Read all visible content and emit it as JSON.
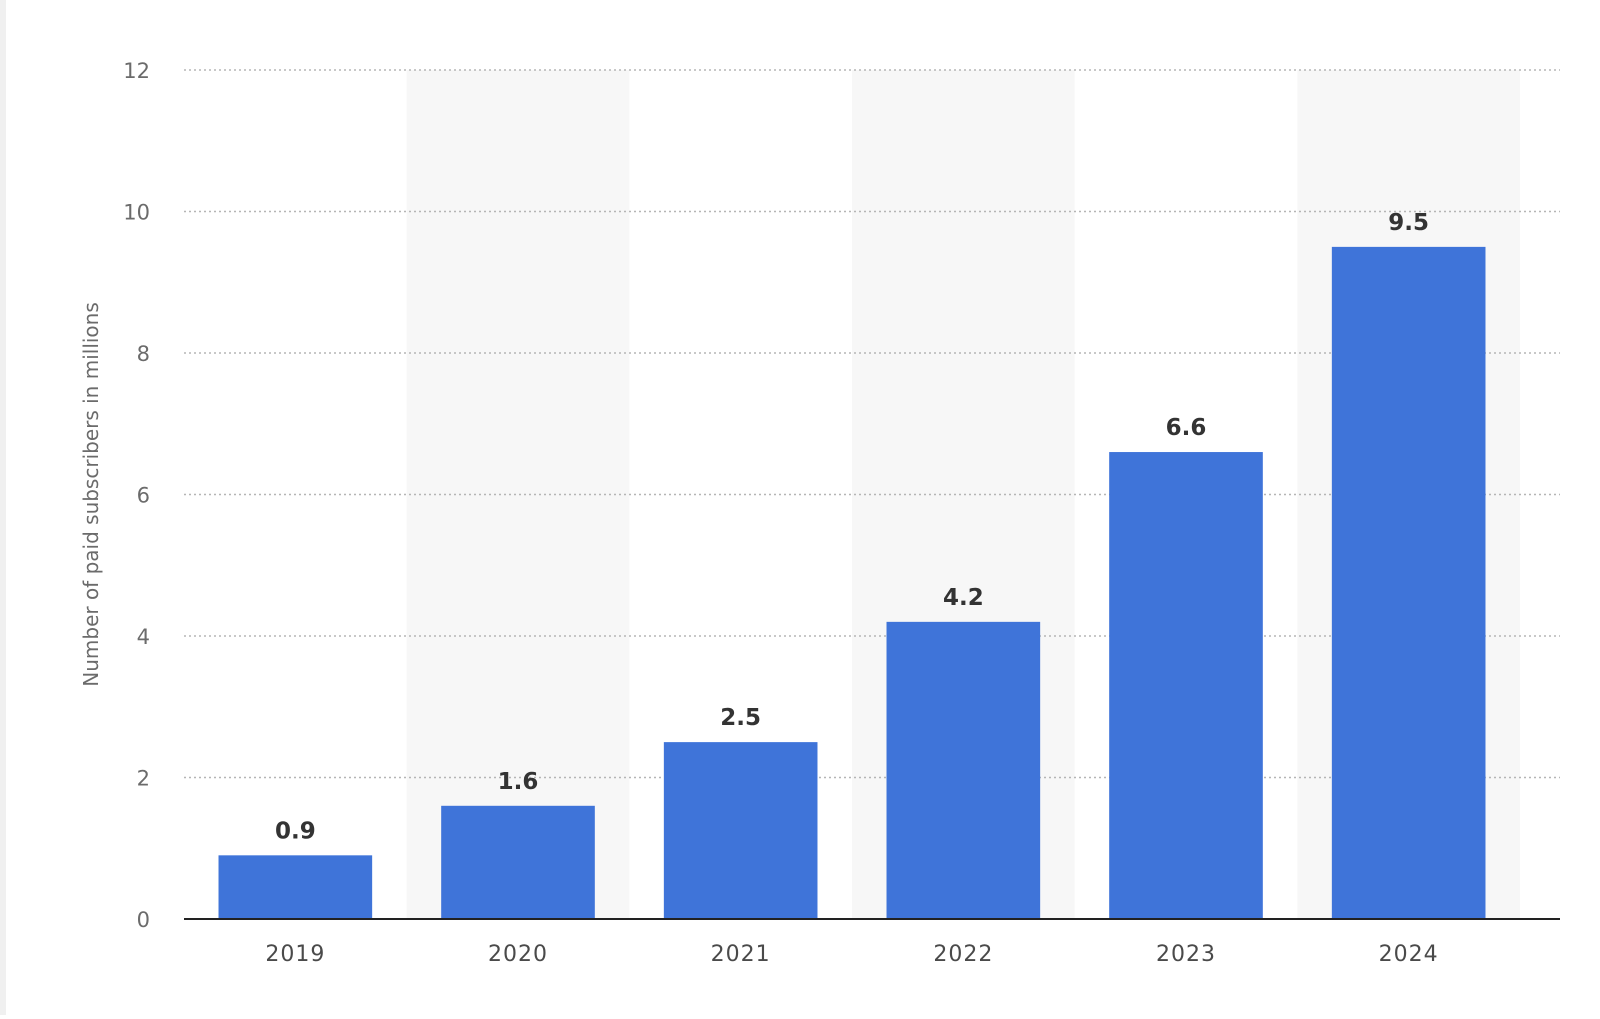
{
  "chart_data": {
    "type": "bar",
    "categories": [
      "2019",
      "2020",
      "2021",
      "2022",
      "2023",
      "2024"
    ],
    "values": [
      0.9,
      1.6,
      2.5,
      4.2,
      6.6,
      9.5
    ],
    "data_labels": [
      "0.9",
      "1.6",
      "2.5",
      "4.2",
      "6.6",
      "9.5"
    ],
    "title": "",
    "xlabel": "",
    "ylabel": "Number of paid subscribers in millions",
    "ylim": [
      0,
      12
    ],
    "yticks": [
      0,
      2,
      4,
      6,
      8,
      10,
      12
    ],
    "grid": "horizontal-dotted",
    "legend": "none",
    "colors": {
      "bar": "#3f74d9",
      "grid": "#b5b5b5",
      "axis": "#222222",
      "alt_band": "#f7f7f7"
    }
  }
}
